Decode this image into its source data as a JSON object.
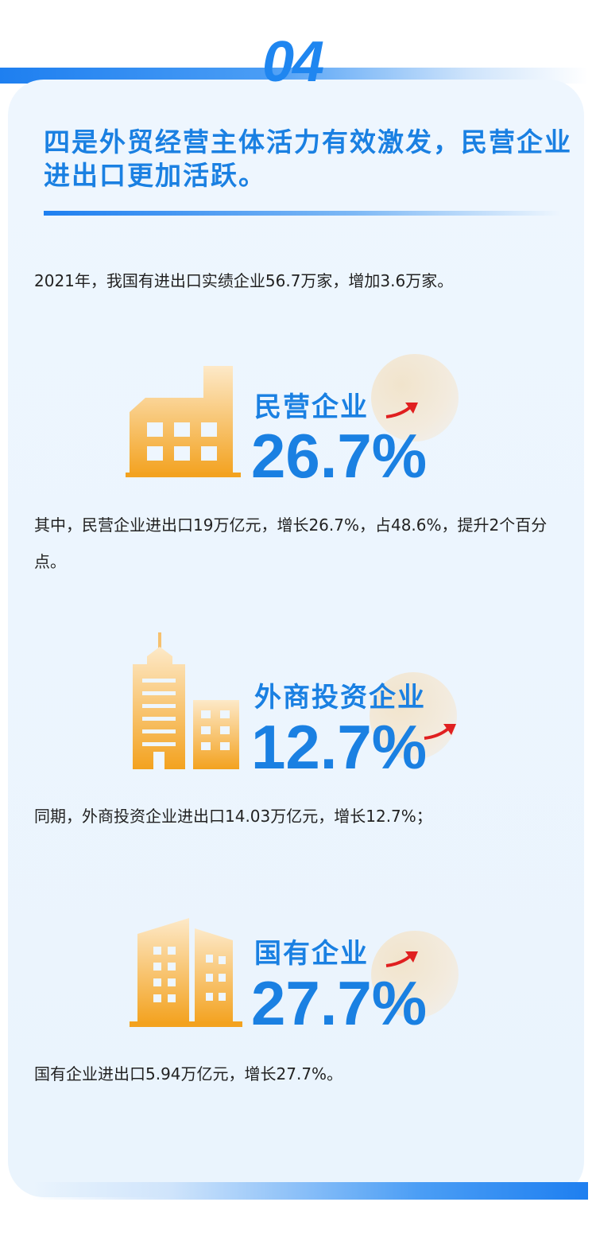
{
  "header": {
    "number": "04",
    "title": "四是外贸经营主体活力有效激发，民营企业进出口更加活跃。"
  },
  "intro": "2021年，我国有进出口实绩企业56.7万家，增加3.6万家。",
  "colors": {
    "accent": "#1a80e2",
    "icon": "#f5a623",
    "arrow": "#e02020"
  },
  "sections": [
    {
      "label": "民营企业",
      "percent": "26.7%",
      "icon": "factory-icon",
      "text": "其中，民营企业进出口19万亿元，增长26.7%，占48.6%，提升2个百分点。"
    },
    {
      "label": "外商投资企业",
      "percent": "12.7%",
      "icon": "skyscraper-icon",
      "text": "同期，外商投资企业进出口14.03万亿元，增长12.7%；"
    },
    {
      "label": "国有企业",
      "percent": "27.7%",
      "icon": "office-building-icon",
      "text": "国有企业进出口5.94万亿元，增长27.7%。"
    }
  ]
}
